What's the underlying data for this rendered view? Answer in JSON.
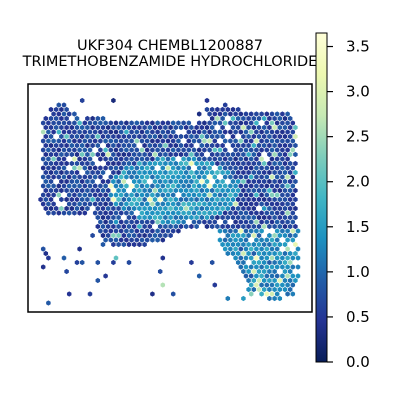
{
  "chart_data": {
    "type": "hexbin-spatial",
    "title_lines": [
      "UKF304 CHEMBL1200887",
      "TRIMETHOBENZAMIDE HYDROCHLORIDE"
    ],
    "xlabel": "",
    "ylabel": "",
    "colorbar": {
      "colormap": "YlGnBu",
      "range": [
        0.0,
        3.65
      ],
      "ticks": [
        0.0,
        0.5,
        1.0,
        1.5,
        2.0,
        2.5,
        3.0,
        3.5
      ],
      "tick_labels": [
        "0.0",
        "0.5",
        "1.0",
        "1.5",
        "2.0",
        "2.5",
        "3.0",
        "3.5"
      ]
    },
    "colors": [
      "#081d58",
      "#253494",
      "#225ea8",
      "#1d91c0",
      "#41b6c4",
      "#7fcdbb",
      "#c7e9b4",
      "#edf8b1",
      "#ffffd9"
    ],
    "grid": false,
    "legend": "none"
  }
}
